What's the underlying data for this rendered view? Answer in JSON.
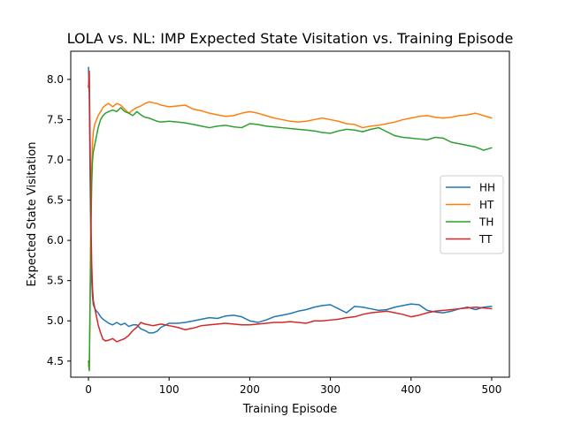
{
  "chart_data": {
    "type": "line",
    "title": "LOLA vs. NL: IMP Expected State Visitation vs. Training Episode",
    "xlabel": "Training Episode",
    "ylabel": "Expected State Visitation",
    "xlim": [
      -22,
      522
    ],
    "ylim": [
      4.3,
      8.35
    ],
    "xticks": [
      0,
      100,
      200,
      300,
      400,
      500
    ],
    "xtick_labels": [
      "0",
      "100",
      "200",
      "300",
      "400",
      "500"
    ],
    "yticks": [
      4.5,
      5.0,
      5.5,
      6.0,
      6.5,
      7.0,
      7.5,
      8.0
    ],
    "ytick_labels": [
      "4.5",
      "5.0",
      "5.5",
      "6.0",
      "6.5",
      "7.0",
      "7.5",
      "8.0"
    ],
    "grid": false,
    "legend_position": "center-right",
    "series": [
      {
        "name": "HH",
        "color": "#1f77b4",
        "x": [
          0,
          1,
          2,
          3,
          4,
          5,
          6,
          8,
          10,
          12,
          15,
          18,
          21,
          25,
          30,
          35,
          40,
          45,
          50,
          55,
          60,
          65,
          70,
          75,
          80,
          85,
          90,
          100,
          110,
          120,
          130,
          140,
          150,
          160,
          170,
          180,
          190,
          200,
          210,
          220,
          230,
          240,
          250,
          260,
          270,
          280,
          290,
          300,
          310,
          320,
          330,
          340,
          350,
          360,
          370,
          380,
          390,
          400,
          410,
          420,
          430,
          440,
          450,
          460,
          470,
          480,
          490,
          500
        ],
        "y": [
          8.15,
          7.8,
          6.8,
          5.9,
          5.5,
          5.3,
          5.2,
          5.15,
          5.12,
          5.1,
          5.05,
          5.02,
          5.0,
          4.97,
          4.95,
          4.98,
          4.95,
          4.97,
          4.93,
          4.95,
          4.95,
          4.9,
          4.88,
          4.85,
          4.85,
          4.87,
          4.92,
          4.97,
          4.97,
          4.98,
          5.0,
          5.02,
          5.04,
          5.03,
          5.06,
          5.07,
          5.05,
          5.0,
          4.98,
          5.01,
          5.05,
          5.07,
          5.09,
          5.12,
          5.14,
          5.17,
          5.19,
          5.2,
          5.15,
          5.1,
          5.18,
          5.17,
          5.15,
          5.13,
          5.14,
          5.17,
          5.19,
          5.21,
          5.2,
          5.13,
          5.11,
          5.1,
          5.12,
          5.15,
          5.17,
          5.14,
          5.17,
          5.18
        ]
      },
      {
        "name": "HT",
        "color": "#ff7f0e",
        "x": [
          0,
          1,
          2,
          3,
          4,
          5,
          6,
          8,
          10,
          12,
          15,
          18,
          21,
          25,
          30,
          35,
          40,
          45,
          50,
          55,
          60,
          65,
          70,
          75,
          80,
          85,
          90,
          100,
          110,
          120,
          130,
          140,
          150,
          160,
          170,
          180,
          190,
          200,
          210,
          220,
          230,
          240,
          250,
          260,
          270,
          280,
          290,
          300,
          310,
          320,
          330,
          340,
          350,
          360,
          370,
          380,
          390,
          400,
          410,
          420,
          430,
          440,
          450,
          460,
          470,
          480,
          490,
          500
        ],
        "y": [
          4.45,
          4.4,
          5.3,
          6.3,
          6.9,
          7.2,
          7.35,
          7.45,
          7.5,
          7.55,
          7.6,
          7.65,
          7.68,
          7.7,
          7.66,
          7.7,
          7.68,
          7.63,
          7.58,
          7.62,
          7.65,
          7.67,
          7.7,
          7.72,
          7.71,
          7.7,
          7.68,
          7.66,
          7.67,
          7.68,
          7.63,
          7.61,
          7.58,
          7.56,
          7.54,
          7.55,
          7.58,
          7.6,
          7.58,
          7.55,
          7.52,
          7.5,
          7.48,
          7.47,
          7.48,
          7.5,
          7.52,
          7.5,
          7.48,
          7.45,
          7.44,
          7.4,
          7.42,
          7.43,
          7.45,
          7.47,
          7.5,
          7.52,
          7.54,
          7.55,
          7.53,
          7.52,
          7.53,
          7.55,
          7.56,
          7.58,
          7.55,
          7.52
        ]
      },
      {
        "name": "TH",
        "color": "#2ca02c",
        "x": [
          0,
          1,
          2,
          3,
          4,
          5,
          6,
          8,
          10,
          12,
          15,
          18,
          21,
          25,
          30,
          35,
          40,
          45,
          50,
          55,
          60,
          65,
          70,
          75,
          80,
          85,
          90,
          100,
          110,
          120,
          130,
          140,
          150,
          160,
          170,
          180,
          190,
          200,
          210,
          220,
          230,
          240,
          250,
          260,
          270,
          280,
          290,
          300,
          310,
          320,
          330,
          340,
          350,
          360,
          370,
          380,
          390,
          400,
          410,
          420,
          430,
          440,
          450,
          460,
          470,
          480,
          490,
          500
        ],
        "y": [
          4.5,
          4.38,
          5.2,
          6.1,
          6.7,
          7.0,
          7.1,
          7.2,
          7.3,
          7.4,
          7.5,
          7.55,
          7.58,
          7.6,
          7.62,
          7.6,
          7.65,
          7.6,
          7.58,
          7.55,
          7.6,
          7.56,
          7.53,
          7.52,
          7.5,
          7.48,
          7.47,
          7.48,
          7.47,
          7.46,
          7.44,
          7.42,
          7.4,
          7.42,
          7.43,
          7.41,
          7.4,
          7.45,
          7.44,
          7.42,
          7.41,
          7.4,
          7.39,
          7.38,
          7.37,
          7.36,
          7.34,
          7.33,
          7.36,
          7.38,
          7.37,
          7.35,
          7.38,
          7.4,
          7.35,
          7.3,
          7.28,
          7.27,
          7.26,
          7.25,
          7.28,
          7.27,
          7.22,
          7.2,
          7.18,
          7.16,
          7.12,
          7.15
        ]
      },
      {
        "name": "TT",
        "color": "#d62728",
        "x": [
          0,
          1,
          2,
          3,
          4,
          5,
          6,
          8,
          10,
          12,
          15,
          18,
          21,
          25,
          30,
          35,
          40,
          45,
          50,
          55,
          60,
          65,
          70,
          75,
          80,
          85,
          90,
          100,
          110,
          120,
          130,
          140,
          150,
          160,
          170,
          180,
          190,
          200,
          210,
          220,
          230,
          240,
          250,
          260,
          270,
          280,
          290,
          300,
          310,
          320,
          330,
          340,
          350,
          360,
          370,
          380,
          390,
          400,
          410,
          420,
          430,
          440,
          450,
          460,
          470,
          480,
          490,
          500
        ],
        "y": [
          7.9,
          8.1,
          7.2,
          6.3,
          5.7,
          5.4,
          5.25,
          5.15,
          5.05,
          4.95,
          4.85,
          4.77,
          4.75,
          4.76,
          4.78,
          4.74,
          4.76,
          4.78,
          4.82,
          4.88,
          4.92,
          4.98,
          4.96,
          4.95,
          4.94,
          4.95,
          4.96,
          4.94,
          4.92,
          4.89,
          4.91,
          4.94,
          4.95,
          4.96,
          4.97,
          4.96,
          4.95,
          4.95,
          4.96,
          4.97,
          4.98,
          4.98,
          4.99,
          4.98,
          4.97,
          5.0,
          5.0,
          5.01,
          5.02,
          5.04,
          5.05,
          5.08,
          5.1,
          5.11,
          5.12,
          5.1,
          5.08,
          5.05,
          5.07,
          5.1,
          5.12,
          5.13,
          5.14,
          5.15,
          5.16,
          5.17,
          5.16,
          5.15
        ]
      }
    ]
  }
}
